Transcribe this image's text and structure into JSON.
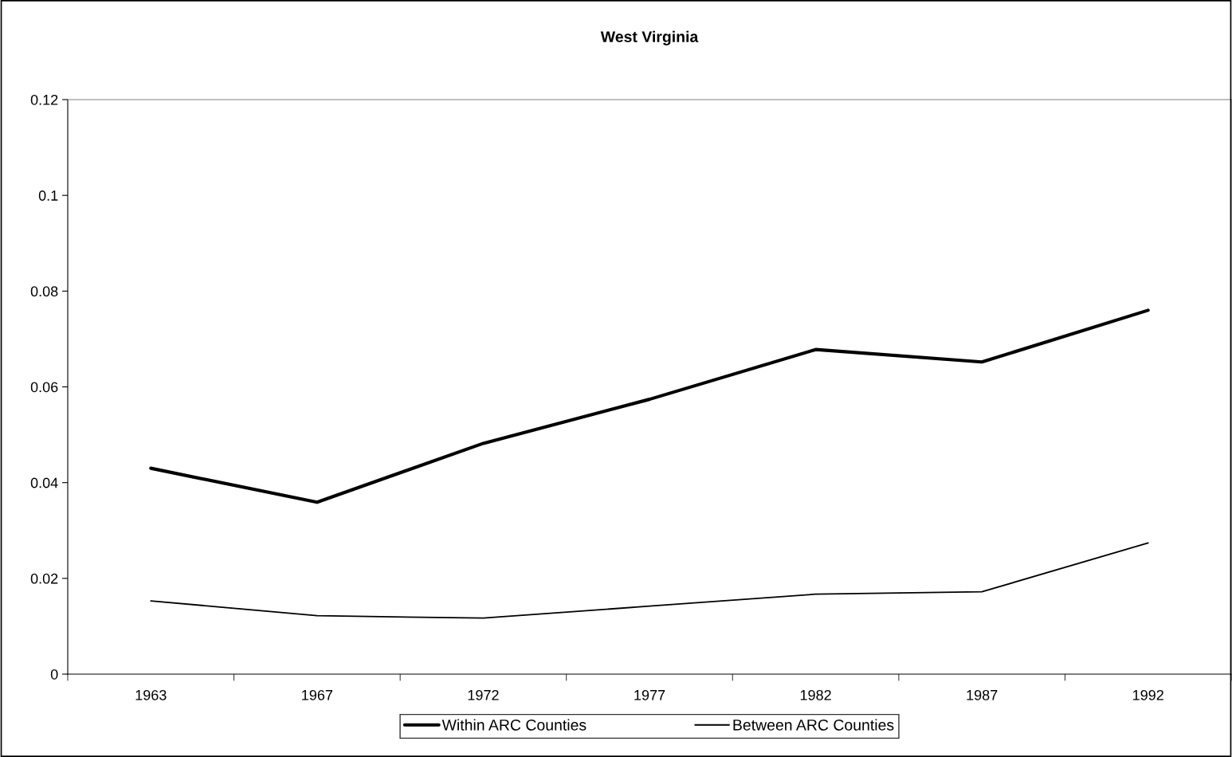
{
  "chart_data": {
    "type": "line",
    "title": "West Virginia",
    "categories": [
      "1963",
      "1967",
      "1972",
      "1977",
      "1982",
      "1987",
      "1992"
    ],
    "series": [
      {
        "name": "Within ARC Counties",
        "color": "#000000",
        "values": [
          0.043,
          0.0359,
          0.0482,
          0.0574,
          0.0678,
          0.0652,
          0.076
        ]
      },
      {
        "name": "Between ARC Counties",
        "color": "#000000",
        "values": [
          0.0153,
          0.0122,
          0.0117,
          0.0142,
          0.0167,
          0.0172,
          0.0274
        ]
      }
    ],
    "ylim": [
      0,
      0.12
    ],
    "yticks": [
      0,
      0.02,
      0.04,
      0.06,
      0.08,
      0.1,
      0.12
    ],
    "grid": false,
    "legend": "bottom",
    "marker": "none",
    "line_style": "solid"
  }
}
